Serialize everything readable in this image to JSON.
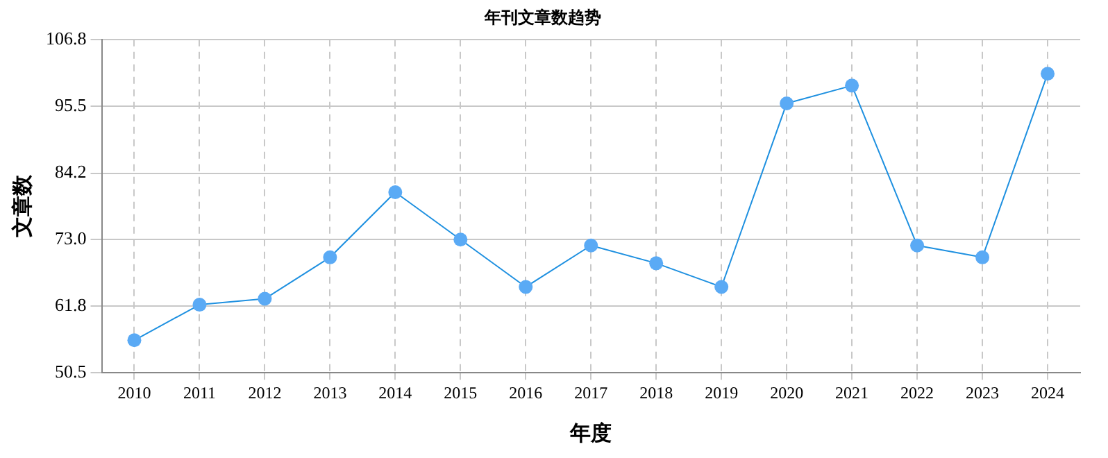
{
  "chart_data": {
    "type": "line",
    "title": "年刊文章数趋势",
    "xlabel": "年度",
    "ylabel": "文章数",
    "categories": [
      "2010",
      "2011",
      "2012",
      "2013",
      "2014",
      "2015",
      "2016",
      "2017",
      "2018",
      "2019",
      "2020",
      "2021",
      "2022",
      "2023",
      "2024"
    ],
    "series": [
      {
        "color": "#1e90e0",
        "values": [
          56,
          62,
          63,
          70,
          81,
          73,
          65,
          72,
          69,
          65,
          96,
          99,
          72,
          70,
          101
        ]
      }
    ],
    "ylim": [
      50.5,
      106.8
    ],
    "yticks": [
      50.5,
      61.8,
      {
        "value": 73,
        "label": "73.0"
      },
      84.2,
      95.5,
      106.8
    ],
    "grid": true,
    "legend": false,
    "marker": "circle",
    "line_style": "solid"
  }
}
